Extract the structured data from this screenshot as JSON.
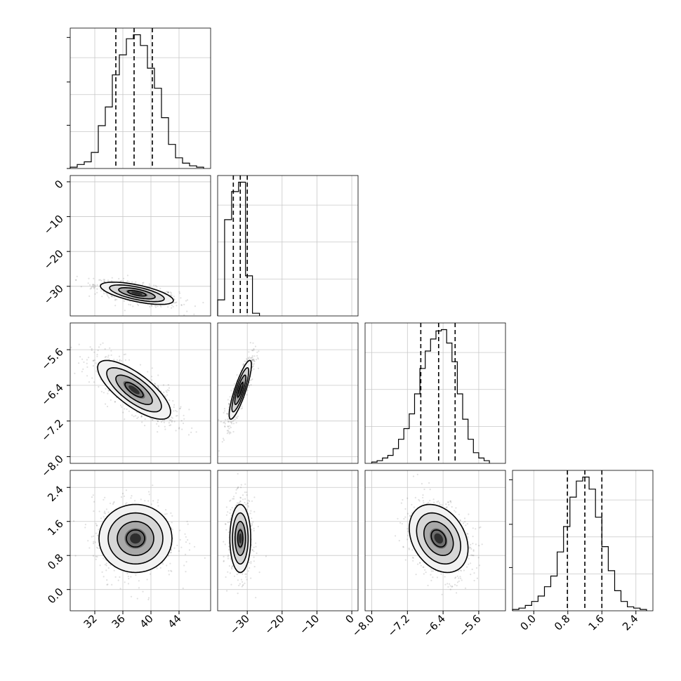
{
  "chart_data": {
    "type": "corner",
    "parameters": [
      {
        "id": "p0",
        "ticks": [
          32,
          36,
          40,
          44
        ],
        "tick_labels": [
          "32",
          "36",
          "40",
          "44"
        ],
        "range": [
          28.5,
          48.5
        ]
      },
      {
        "id": "p1",
        "ticks": [
          -30,
          -20,
          -10,
          0
        ],
        "tick_labels": [
          "−30",
          "−20",
          "−10",
          "0"
        ],
        "range": [
          -38.5,
          1.8
        ]
      },
      {
        "id": "p2",
        "ticks": [
          -8.0,
          -7.2,
          -6.4,
          -5.6
        ],
        "tick_labels": [
          "−8.0",
          "−7.2",
          "−6.4",
          "−5.6"
        ],
        "range": [
          -8.15,
          -5.0
        ]
      },
      {
        "id": "p3",
        "ticks": [
          0.0,
          0.8,
          1.6,
          2.4
        ],
        "tick_labels": [
          "0.0",
          "0.8",
          "1.6",
          "2.4"
        ],
        "range": [
          -0.5,
          2.8
        ]
      }
    ],
    "marginals": [
      {
        "param": "p0",
        "quantiles": [
          35.0,
          37.6,
          40.2
        ],
        "counts_max": 1.0,
        "bin_edges": [
          28.5,
          29.5,
          30.5,
          31.5,
          32.5,
          33.5,
          34.5,
          35.5,
          36.5,
          37.5,
          38.5,
          39.5,
          40.5,
          41.5,
          42.5,
          43.5,
          44.5,
          45.5,
          46.5,
          47.5
        ],
        "counts": [
          0.01,
          0.03,
          0.05,
          0.12,
          0.32,
          0.46,
          0.7,
          0.85,
          0.97,
          1.0,
          0.92,
          0.75,
          0.6,
          0.38,
          0.18,
          0.08,
          0.04,
          0.02,
          0.01
        ]
      },
      {
        "param": "p1",
        "quantiles": [
          -34.0,
          -32.0,
          -30.0
        ],
        "counts_max": 1.0,
        "bin_edges": [
          -38.5,
          -36.5,
          -34.5,
          -32.5,
          -30.5,
          -28.5,
          -26.5
        ],
        "counts": [
          0.12,
          0.72,
          0.93,
          1.0,
          0.3,
          0.02
        ]
      },
      {
        "param": "p2",
        "quantiles": [
          -6.9,
          -6.5,
          -6.13
        ],
        "counts_max": 1.0,
        "bin_edges": [
          -8.0,
          -7.88,
          -7.76,
          -7.64,
          -7.52,
          -7.4,
          -7.28,
          -7.16,
          -7.04,
          -6.92,
          -6.8,
          -6.68,
          -6.56,
          -6.44,
          -6.32,
          -6.2,
          -6.08,
          -5.96,
          -5.84,
          -5.72,
          -5.6,
          -5.48,
          -5.36
        ],
        "counts": [
          0.01,
          0.02,
          0.04,
          0.06,
          0.11,
          0.18,
          0.26,
          0.37,
          0.52,
          0.71,
          0.84,
          0.93,
          0.99,
          1.0,
          0.9,
          0.76,
          0.52,
          0.33,
          0.18,
          0.08,
          0.04,
          0.02
        ]
      },
      {
        "param": "p3",
        "quantiles": [
          0.79,
          1.2,
          1.6
        ],
        "counts_max": 1.0,
        "bin_edges": [
          -0.5,
          -0.35,
          -0.2,
          -0.05,
          0.1,
          0.25,
          0.4,
          0.55,
          0.7,
          0.85,
          1.0,
          1.15,
          1.3,
          1.45,
          1.6,
          1.75,
          1.9,
          2.05,
          2.2,
          2.35,
          2.5,
          2.65
        ],
        "counts": [
          0.01,
          0.02,
          0.04,
          0.07,
          0.11,
          0.18,
          0.26,
          0.44,
          0.63,
          0.85,
          0.97,
          1.0,
          0.91,
          0.7,
          0.48,
          0.3,
          0.15,
          0.07,
          0.03,
          0.02,
          0.01
        ]
      }
    ],
    "pairs": [
      {
        "x": "p0",
        "y": "p1",
        "mean": [
          38,
          -32
        ],
        "sd": [
          2.6,
          1.6
        ],
        "rho": -0.65,
        "contour_sigmas": [
          0.5,
          1.0,
          1.5,
          2.0
        ]
      },
      {
        "x": "p0",
        "y": "p2",
        "mean": [
          37.6,
          -6.5
        ],
        "sd": [
          2.6,
          0.33
        ],
        "rho": -0.75,
        "contour_sigmas": [
          0.5,
          1.0,
          1.5,
          2.0
        ]
      },
      {
        "x": "p1",
        "y": "p2",
        "mean": [
          -32,
          -6.5
        ],
        "sd": [
          1.6,
          0.33
        ],
        "rho": 0.85,
        "contour_sigmas": [
          0.5,
          1.0,
          1.5,
          2.0
        ]
      },
      {
        "x": "p0",
        "y": "p3",
        "mean": [
          37.8,
          1.2
        ],
        "sd": [
          2.6,
          0.4
        ],
        "rho": 0.0,
        "contour_sigmas": [
          0.5,
          1.0,
          1.5,
          2.0
        ]
      },
      {
        "x": "p1",
        "y": "p3",
        "mean": [
          -32,
          1.2
        ],
        "sd": [
          1.5,
          0.4
        ],
        "rho": 0.0,
        "contour_sigmas": [
          0.5,
          1.0,
          1.5,
          2.0
        ]
      },
      {
        "x": "p2",
        "y": "p3",
        "mean": [
          -6.5,
          1.2
        ],
        "sd": [
          0.33,
          0.4
        ],
        "rho": -0.3,
        "contour_sigmas": [
          0.5,
          1.0,
          1.5,
          2.0
        ]
      }
    ],
    "grid": true,
    "colors": {
      "points": "#000000",
      "lines": "#000000",
      "grid": "#c8c8c8"
    }
  }
}
